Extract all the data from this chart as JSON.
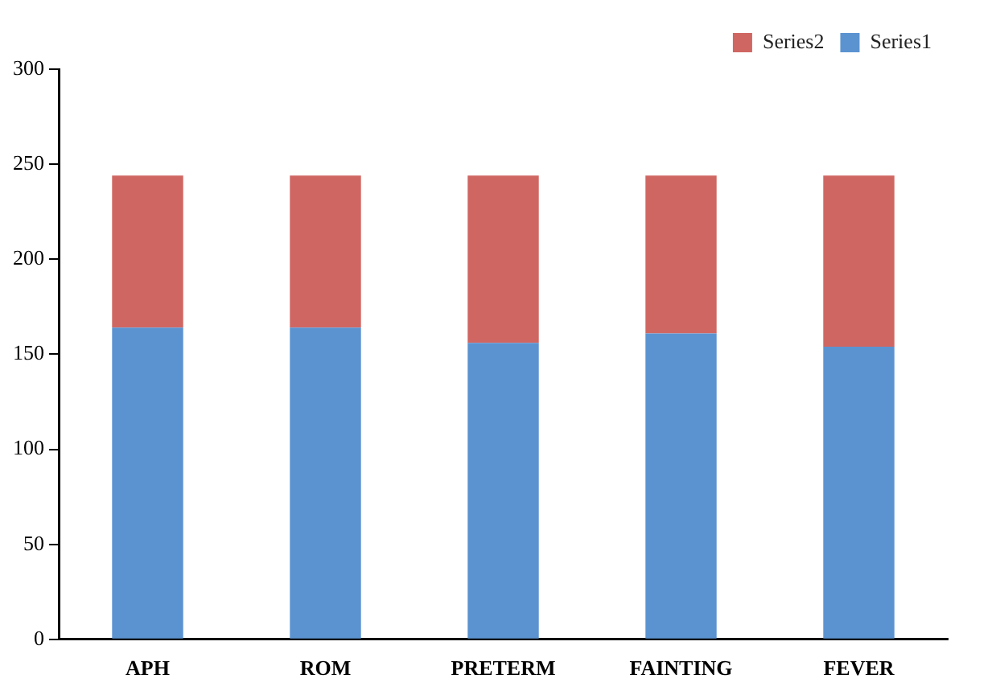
{
  "chart_data": {
    "type": "bar",
    "stacked": true,
    "categories": [
      "APH",
      "ROM",
      "PRETERM",
      "FAINTING",
      "FEVER"
    ],
    "series": [
      {
        "name": "Series1",
        "color": "#5b93d1",
        "values": [
          164,
          164,
          156,
          161,
          154
        ]
      },
      {
        "name": "Series2",
        "color": "#d06662",
        "values": [
          80,
          80,
          88,
          83,
          90
        ]
      }
    ],
    "ylim": [
      0,
      300
    ],
    "yticks": [
      0,
      50,
      100,
      150,
      200,
      250,
      300
    ],
    "grid": false,
    "legend": "top right"
  }
}
